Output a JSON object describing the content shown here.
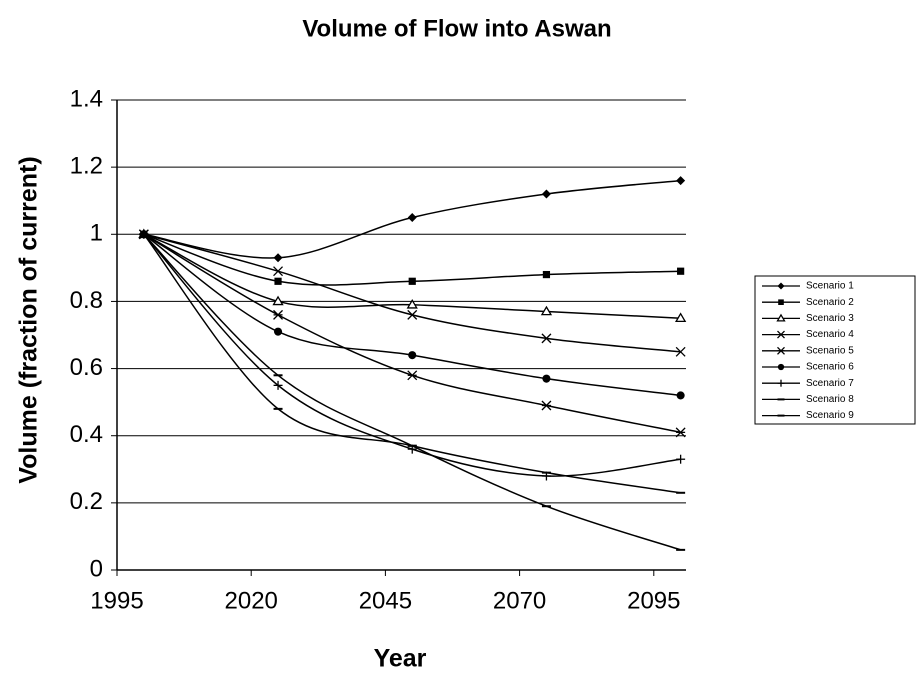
{
  "chart_data": {
    "type": "line",
    "title": "Volume of Flow into Aswan",
    "x_label": "Year",
    "y_label": "Volume (fraction of current)",
    "x": [
      2000,
      2025,
      2050,
      2075,
      2100
    ],
    "xlim": [
      1995,
      2101
    ],
    "xticks": [
      1995,
      2020,
      2045,
      2070,
      2095
    ],
    "ylim": [
      0,
      1.4
    ],
    "yticks": [
      0,
      0.2,
      0.4,
      0.6,
      0.8,
      1,
      1.2,
      1.4
    ],
    "grid": true,
    "smooth": true,
    "legend": "right",
    "series": [
      {
        "name": "Scenario 1",
        "color": "#000000",
        "marker": "diamond",
        "values": [
          1,
          0.93,
          1.05,
          1.12,
          1.16
        ]
      },
      {
        "name": "Scenario 2",
        "color": "#000000",
        "marker": "square",
        "values": [
          1,
          0.86,
          0.86,
          0.88,
          0.89
        ]
      },
      {
        "name": "Scenario 3",
        "color": "#000000",
        "marker": "triangle",
        "values": [
          1,
          0.8,
          0.79,
          0.77,
          0.75
        ]
      },
      {
        "name": "Scenario 4",
        "color": "#000000",
        "marker": "x",
        "values": [
          1,
          0.89,
          0.76,
          0.69,
          0.65
        ]
      },
      {
        "name": "Scenario 5",
        "color": "#000000",
        "marker": "star",
        "values": [
          1,
          0.76,
          0.58,
          0.49,
          0.41
        ]
      },
      {
        "name": "Scenario 6",
        "color": "#000000",
        "marker": "circle",
        "values": [
          1,
          0.71,
          0.64,
          0.57,
          0.52
        ]
      },
      {
        "name": "Scenario 7",
        "color": "#000000",
        "marker": "plus",
        "values": [
          1,
          0.55,
          0.36,
          0.28,
          0.33
        ]
      },
      {
        "name": "Scenario 8",
        "color": "#000000",
        "marker": "dash",
        "values": [
          1,
          0.48,
          0.37,
          0.29,
          0.23
        ]
      },
      {
        "name": "Scenario 9",
        "color": "#000000",
        "marker": "dash",
        "values": [
          1,
          0.58,
          0.37,
          0.19,
          0.06
        ]
      }
    ]
  }
}
